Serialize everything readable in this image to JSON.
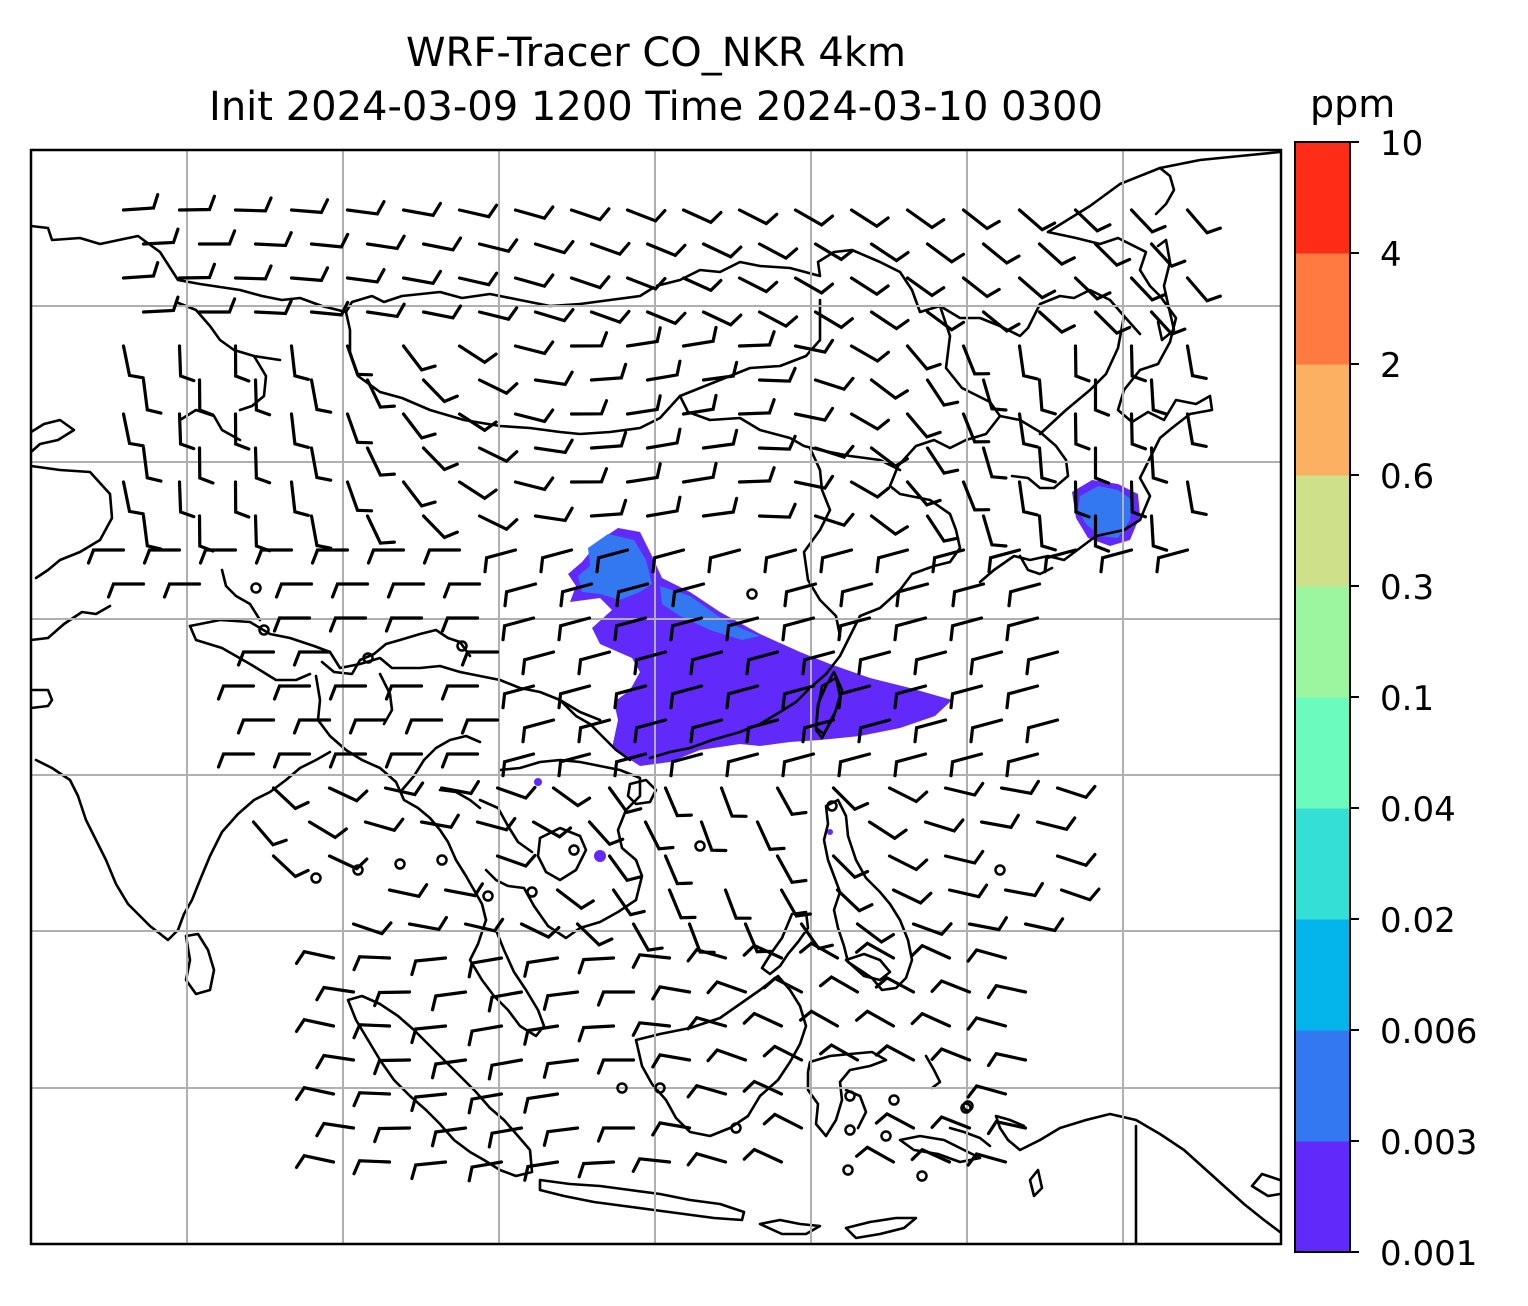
{
  "title": {
    "line1": "WRF-Tracer CO_NKR 4km",
    "line2": "Init 2024-03-09 1200 Time 2024-03-10 0300"
  },
  "colorbar": {
    "unit": "ppm",
    "levels": [
      "0.001",
      "0.003",
      "0.006",
      "0.02",
      "0.04",
      "0.1",
      "0.3",
      "0.6",
      "2",
      "4",
      "10"
    ],
    "colors": [
      "#6229fb",
      "#3377f1",
      "#04b5ec",
      "#34e0d6",
      "#6cfbbe",
      "#9cf69f",
      "#cfe08b",
      "#fbb062",
      "#ff7a40",
      "#ff2d18"
    ]
  },
  "map": {
    "gridlines": true,
    "coastline_color": "#000000",
    "grid_color": "#b0b0b0",
    "tracer_color_low": "#6229fb",
    "tracer_color_mid": "#3377f1"
  }
}
